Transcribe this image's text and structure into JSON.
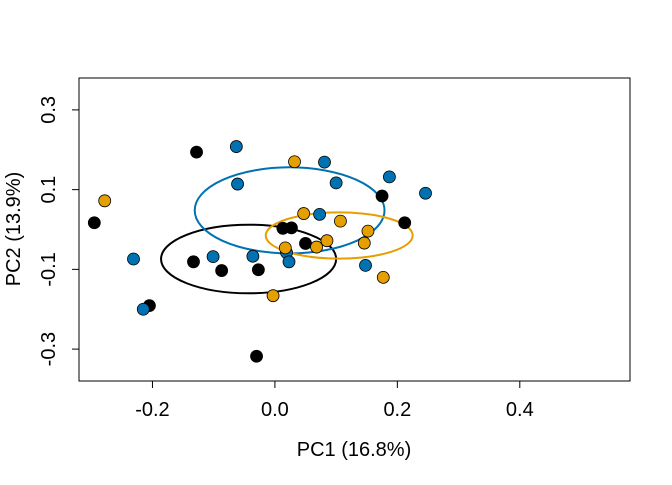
{
  "chart_data": {
    "type": "scatter",
    "title": "",
    "xlabel": "PC1 (16.8%)",
    "ylabel": "PC2 (13.9%)",
    "xlim": [
      -0.32,
      0.58
    ],
    "ylim": [
      -0.38,
      0.38
    ],
    "xticks": [
      -0.2,
      0.0,
      0.2,
      0.4
    ],
    "xtick_labels": [
      "-0.2",
      "0.0",
      "0.2",
      "0.4"
    ],
    "yticks": [
      -0.3,
      -0.1,
      0.1,
      0.3
    ],
    "ytick_labels": [
      "-0.3",
      "-0.1",
      "0.1",
      "0.3"
    ],
    "grid": false,
    "legend": "none",
    "series": [
      {
        "color": "#000000",
        "points": [
          [
            -0.295,
            0.017
          ],
          [
            -0.205,
            -0.191
          ],
          [
            -0.128,
            0.194
          ],
          [
            -0.133,
            -0.081
          ],
          [
            -0.087,
            -0.103
          ],
          [
            -0.027,
            -0.101
          ],
          [
            -0.03,
            -0.318
          ],
          [
            0.013,
            0.003
          ],
          [
            0.027,
            0.004
          ],
          [
            0.05,
            -0.035
          ],
          [
            0.175,
            0.084
          ],
          [
            0.212,
            0.017
          ]
        ],
        "ellipse": {
          "center": [
            -0.043,
            -0.074
          ],
          "rx": 0.143,
          "ry": 0.086
        }
      },
      {
        "color": "#0072B2",
        "points": [
          [
            -0.231,
            -0.074
          ],
          [
            -0.215,
            -0.2
          ],
          [
            -0.101,
            -0.068
          ],
          [
            -0.063,
            0.208
          ],
          [
            -0.061,
            0.114
          ],
          [
            -0.036,
            -0.067
          ],
          [
            0.019,
            -0.058
          ],
          [
            0.023,
            -0.081
          ],
          [
            0.073,
            0.038
          ],
          [
            0.081,
            0.169
          ],
          [
            0.1,
            0.117
          ],
          [
            0.148,
            -0.09
          ],
          [
            0.187,
            0.132
          ],
          [
            0.246,
            0.091
          ]
        ],
        "ellipse": {
          "center": [
            0.024,
            0.048
          ],
          "rx": 0.155,
          "ry": 0.108
        }
      },
      {
        "color": "#E69F00",
        "points": [
          [
            -0.278,
            0.072
          ],
          [
            -0.003,
            -0.166
          ],
          [
            0.017,
            -0.046
          ],
          [
            0.032,
            0.17
          ],
          [
            0.047,
            0.04
          ],
          [
            0.068,
            -0.044
          ],
          [
            0.085,
            -0.028
          ],
          [
            0.107,
            0.021
          ],
          [
            0.146,
            -0.034
          ],
          [
            0.152,
            -0.004
          ],
          [
            0.177,
            -0.12
          ]
        ],
        "ellipse": {
          "center": [
            0.105,
            -0.015
          ],
          "rx": 0.12,
          "ry": 0.058
        }
      }
    ]
  }
}
